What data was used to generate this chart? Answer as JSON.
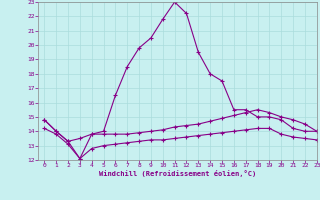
{
  "xlabel": "Windchill (Refroidissement éolien,°C)",
  "bg_color": "#c8f0f0",
  "line_color": "#880088",
  "grid_color": "#aadddd",
  "xlim": [
    -0.5,
    23
  ],
  "ylim": [
    12,
    23
  ],
  "xticks": [
    0,
    1,
    2,
    3,
    4,
    5,
    6,
    7,
    8,
    9,
    10,
    11,
    12,
    13,
    14,
    15,
    16,
    17,
    18,
    19,
    20,
    21,
    22,
    23
  ],
  "yticks": [
    12,
    13,
    14,
    15,
    16,
    17,
    18,
    19,
    20,
    21,
    22,
    23
  ],
  "curve1_x": [
    0,
    1,
    2,
    3,
    4,
    5,
    6,
    7,
    8,
    9,
    10,
    11,
    12,
    13,
    14,
    15,
    16,
    17,
    18,
    19,
    20,
    21,
    22,
    23
  ],
  "curve1_y": [
    14.8,
    14.0,
    13.3,
    12.1,
    13.8,
    14.0,
    16.5,
    18.5,
    19.8,
    20.5,
    21.8,
    23.0,
    22.2,
    19.5,
    18.0,
    17.5,
    15.5,
    15.5,
    15.0,
    15.0,
    14.8,
    14.2,
    14.0,
    14.0
  ],
  "curve2_x": [
    0,
    1,
    2,
    3,
    4,
    5,
    6,
    7,
    8,
    9,
    10,
    11,
    12,
    13,
    14,
    15,
    16,
    17,
    18,
    19,
    20,
    21,
    22,
    23
  ],
  "curve2_y": [
    14.8,
    14.0,
    13.3,
    13.5,
    13.8,
    13.8,
    13.8,
    13.8,
    13.9,
    14.0,
    14.1,
    14.3,
    14.4,
    14.5,
    14.7,
    14.9,
    15.1,
    15.3,
    15.5,
    15.3,
    15.0,
    14.8,
    14.5,
    14.0
  ],
  "curve3_x": [
    0,
    1,
    2,
    3,
    4,
    5,
    6,
    7,
    8,
    9,
    10,
    11,
    12,
    13,
    14,
    15,
    16,
    17,
    18,
    19,
    20,
    21,
    22,
    23
  ],
  "curve3_y": [
    14.2,
    13.8,
    13.1,
    12.1,
    12.8,
    13.0,
    13.1,
    13.2,
    13.3,
    13.4,
    13.4,
    13.5,
    13.6,
    13.7,
    13.8,
    13.9,
    14.0,
    14.1,
    14.2,
    14.2,
    13.8,
    13.6,
    13.5,
    13.4
  ],
  "marker": "+",
  "markersize": 3,
  "linewidth": 0.8
}
